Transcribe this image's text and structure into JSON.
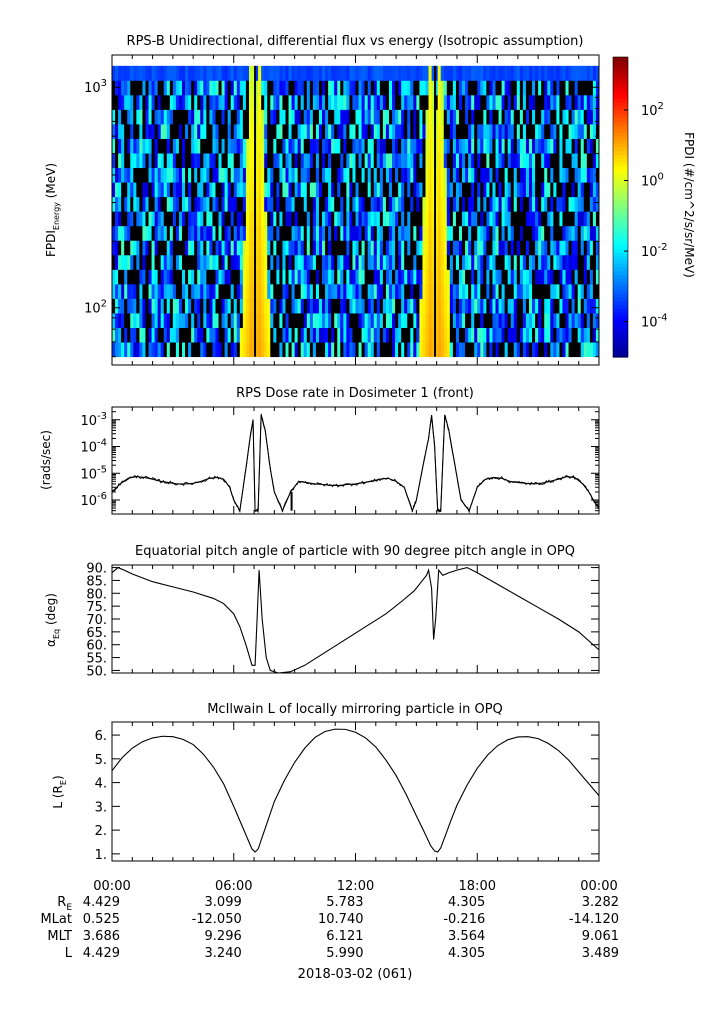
{
  "chart_data": [
    {
      "type": "heatmap",
      "title": "RPS-B  Unidirectional, differential flux vs energy (Isotropic assumption)",
      "ylabel_main": "FPDI",
      "ylabel_sub": "Energy",
      "ylabel_unit": "(MeV)",
      "yscale": "log",
      "ylim": [
        55,
        1400
      ],
      "y_ticks": [
        {
          "value": 100,
          "base": "10",
          "exp": "2"
        },
        {
          "value": 1000,
          "base": "10",
          "exp": "3"
        }
      ],
      "colorbar": {
        "label": "FPDI (#/cm^2/s/sr/MeV)",
        "scale": "log",
        "range_exp": [
          -5,
          3.5
        ],
        "ticks": [
          {
            "base": "10",
            "exp": "-4",
            "value_exp": -4
          },
          {
            "base": "10",
            "exp": "-2",
            "value_exp": -2
          },
          {
            "base": "10",
            "exp": "0",
            "value_exp": 0
          },
          {
            "base": "10",
            "exp": "2",
            "value_exp": 2
          }
        ],
        "colors": [
          "#00008f",
          "#0000ff",
          "#007fff",
          "#00ffff",
          "#7fff7f",
          "#ffff00",
          "#ff7f00",
          "#ff0000",
          "#7f0000"
        ]
      },
      "bright_bands_hours": [
        6.9,
        7.25,
        15.7,
        16.15
      ]
    },
    {
      "type": "line",
      "title": "RPS  Dose rate in Dosimeter 1 (front)",
      "ylabel": "(rads/sec)",
      "yscale": "log",
      "ylim": [
        3e-07,
        0.003
      ],
      "y_ticks": [
        {
          "value": 1e-06,
          "base": "10",
          "exp": "-6"
        },
        {
          "value": 1e-05,
          "base": "10",
          "exp": "-5"
        },
        {
          "value": 0.0001,
          "base": "10",
          "exp": "-4"
        },
        {
          "value": 0.001,
          "base": "10",
          "exp": "-3"
        }
      ],
      "x": [
        0,
        0.4,
        0.8,
        1.2,
        1.6,
        2.0,
        2.4,
        2.8,
        3.2,
        3.6,
        4.0,
        4.4,
        4.8,
        5.2,
        5.5,
        5.8,
        6.0,
        6.3,
        6.6,
        6.8,
        6.95,
        7.05,
        7.2,
        7.35,
        7.55,
        7.8,
        8.0,
        8.4,
        8.8,
        9.2,
        9.6,
        10.0,
        10.4,
        10.8,
        11.2,
        11.6,
        12.0,
        12.4,
        12.8,
        13.2,
        13.6,
        14.0,
        14.4,
        14.8,
        15.0,
        15.3,
        15.6,
        15.75,
        15.9,
        16.05,
        16.2,
        16.4,
        16.6,
        16.9,
        17.2,
        17.6,
        18.0,
        18.4,
        18.8,
        19.2,
        19.6,
        20.0,
        20.4,
        20.8,
        21.2,
        21.6,
        22.0,
        22.4,
        22.8,
        23.2,
        23.5,
        23.8,
        24.0
      ],
      "y": [
        2e-06,
        4e-06,
        6.5e-06,
        7.5e-06,
        7e-06,
        6e-06,
        5e-06,
        4.5e-06,
        4e-06,
        4e-06,
        4.2e-06,
        5e-06,
        6.5e-06,
        7e-06,
        6e-06,
        3e-06,
        1e-06,
        4e-07,
        1.5e-05,
        0.0002,
        0.001,
        4e-07,
        4e-07,
        0.0015,
        0.0004,
        1.5e-05,
        2e-06,
        4e-07,
        2e-06,
        5e-06,
        4.5e-06,
        4e-06,
        3.8e-06,
        3.5e-06,
        3.5e-06,
        3.8e-06,
        4e-06,
        4.5e-06,
        5e-06,
        6e-06,
        6.5e-06,
        5e-06,
        3e-06,
        4e-07,
        1e-06,
        1.5e-05,
        0.0002,
        0.0015,
        0.0001,
        4e-07,
        4e-07,
        0.0015,
        0.0004,
        2e-05,
        1e-06,
        4e-07,
        3e-06,
        6e-06,
        7e-06,
        6.5e-06,
        5e-06,
        4.5e-06,
        4.2e-06,
        4e-06,
        4.3e-06,
        5e-06,
        6e-06,
        7.5e-06,
        7e-06,
        4e-06,
        2e-06,
        8e-07,
        5e-07
      ]
    },
    {
      "type": "line",
      "title": "Equatorial pitch angle of particle with 90 degree pitch angle in OPQ",
      "ylabel_main": "α",
      "ylabel_sub": "Eq",
      "ylabel_unit": "(deg)",
      "ylim": [
        49,
        91
      ],
      "y_ticks": [
        "50.",
        "55.",
        "60.",
        "65.",
        "70.",
        "75.",
        "80.",
        "85.",
        "90."
      ],
      "x": [
        0,
        0.3,
        0.6,
        1.0,
        1.5,
        2.0,
        3.0,
        4.0,
        5.0,
        5.5,
        6.0,
        6.3,
        6.6,
        6.9,
        7.05,
        7.15,
        7.25,
        7.4,
        7.6,
        7.8,
        8.2,
        8.8,
        9.5,
        10.5,
        11.5,
        12.5,
        13.5,
        14.3,
        14.9,
        15.3,
        15.5,
        15.6,
        15.75,
        15.85,
        15.95,
        16.1,
        16.3,
        16.6,
        17.0,
        17.5,
        18.0,
        19.0,
        20.0,
        21.0,
        22.0,
        23.0,
        24.0
      ],
      "y": [
        88,
        90,
        89,
        87.5,
        86,
        84.5,
        82.5,
        80.5,
        78,
        76,
        72,
        67,
        60,
        52,
        52,
        70,
        89,
        70,
        55,
        50,
        49,
        49.5,
        52,
        57,
        62,
        67,
        72,
        77,
        81,
        85,
        87,
        89,
        82,
        62,
        70,
        89,
        87,
        88,
        89,
        90,
        88,
        83.5,
        79,
        74.5,
        70,
        65,
        58
      ]
    },
    {
      "type": "line",
      "title": "McIlwain L of locally mirroring particle in OPQ",
      "ylabel_main": "L (R",
      "ylabel_sub": "E",
      "ylabel_unit": ")",
      "ylim": [
        0.7,
        6.55
      ],
      "y_ticks": [
        "1.",
        "2.",
        "3.",
        "4.",
        "5.",
        "6."
      ],
      "x": [
        0,
        0.5,
        1.0,
        1.5,
        2.0,
        2.5,
        3.0,
        3.5,
        4.0,
        4.5,
        5.0,
        5.5,
        6.0,
        6.4,
        6.7,
        6.9,
        7.05,
        7.2,
        7.4,
        7.7,
        8.0,
        8.5,
        9.0,
        9.5,
        10.0,
        10.5,
        11.0,
        11.5,
        12.0,
        12.5,
        13.0,
        13.5,
        14.0,
        14.5,
        15.0,
        15.4,
        15.7,
        15.9,
        16.05,
        16.2,
        16.4,
        16.7,
        17.0,
        17.5,
        18.0,
        18.5,
        19.0,
        19.5,
        20.0,
        20.5,
        21.0,
        21.5,
        22.0,
        22.5,
        23.0,
        23.5,
        24.0
      ],
      "y": [
        4.5,
        5.05,
        5.45,
        5.72,
        5.88,
        5.95,
        5.93,
        5.82,
        5.6,
        5.2,
        4.65,
        3.95,
        3.0,
        2.2,
        1.6,
        1.2,
        1.08,
        1.2,
        1.7,
        2.45,
        3.2,
        4.1,
        4.85,
        5.45,
        5.9,
        6.15,
        6.25,
        6.24,
        6.12,
        5.88,
        5.5,
        4.95,
        4.3,
        3.5,
        2.6,
        1.9,
        1.35,
        1.12,
        1.08,
        1.25,
        1.7,
        2.4,
        3.05,
        3.9,
        4.6,
        5.15,
        5.55,
        5.8,
        5.92,
        5.93,
        5.85,
        5.65,
        5.35,
        4.95,
        4.45,
        3.95,
        3.45
      ]
    }
  ],
  "x_axis": {
    "range_hours": [
      0,
      24
    ],
    "tick_labels": [
      "00:00",
      "06:00",
      "12:00",
      "18:00",
      "00:00"
    ],
    "date_label": "2018-03-02 (061)"
  },
  "ephemeris": {
    "labels": [
      {
        "base": "R",
        "sub": "E"
      },
      {
        "base": "MLat",
        "sub": ""
      },
      {
        "base": "MLT",
        "sub": ""
      },
      {
        "base": "L",
        "sub": ""
      }
    ],
    "rows": [
      [
        "4.429",
        "3.099",
        "5.783",
        "4.305",
        "3.282"
      ],
      [
        "0.525",
        "-12.050",
        "10.740",
        "-0.216",
        "-14.120"
      ],
      [
        "3.686",
        "9.296",
        "6.121",
        "3.564",
        "9.061"
      ],
      [
        "4.429",
        "3.240",
        "5.990",
        "4.305",
        "3.489"
      ]
    ]
  }
}
